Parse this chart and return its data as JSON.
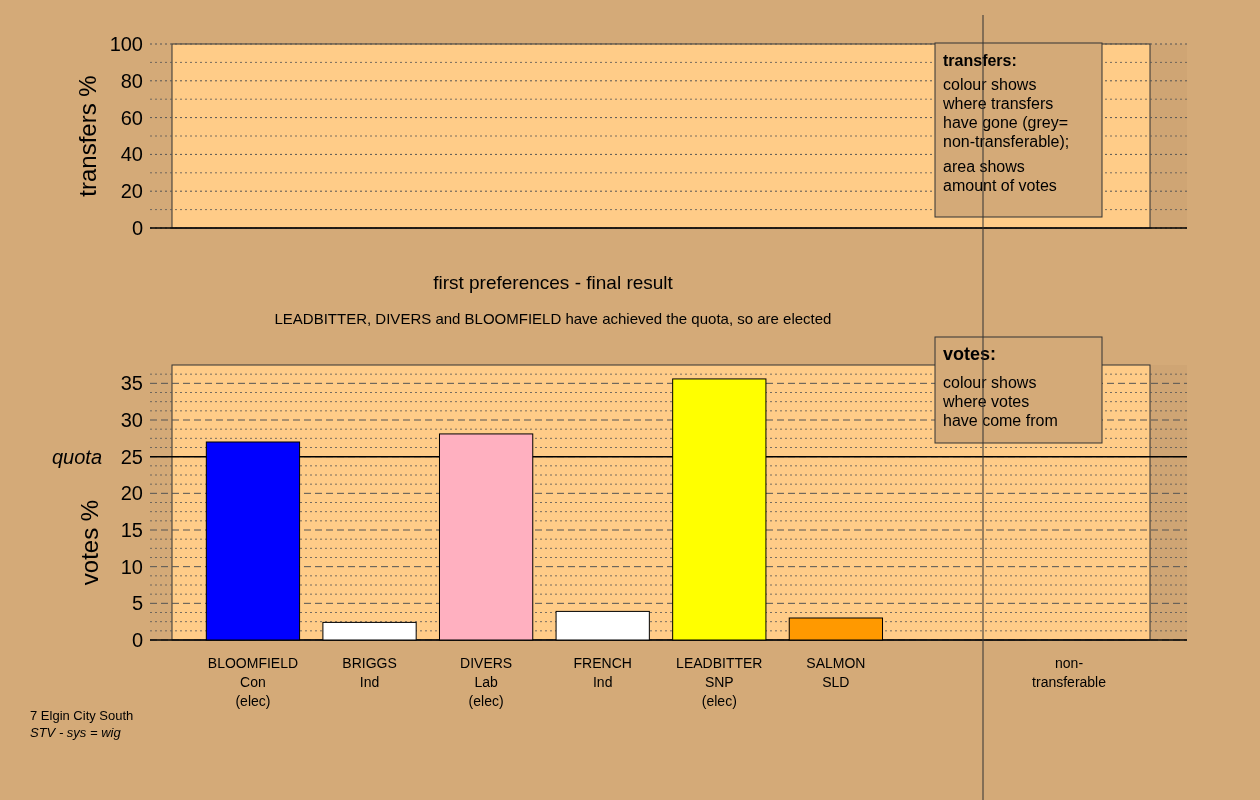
{
  "chart_data": [
    {
      "type": "bar",
      "ylabel": "transfers %",
      "values": [
        null,
        null,
        null,
        null,
        null,
        null,
        null,
        null
      ],
      "ylim": [
        0,
        100
      ],
      "yticks": [
        0,
        20,
        40,
        60,
        80,
        100
      ],
      "grid": true,
      "tick_labels": "y",
      "annotations": [
        "transfers:",
        "colour shows\nwhere transfers\nhave gone (grey=\nnon-transferable);",
        "area shows\namount of votes"
      ]
    },
    {
      "type": "bar",
      "title": "first preferences - final result",
      "subtitle": "LEADBITTER, DIVERS and BLOOMFIELD have achieved the quota, so are elected",
      "ylabel": "votes %",
      "categories": [
        "BLOOMFIELD\nCon\n(elec)",
        "BRIGGS\nInd",
        "DIVERS\nLab\n(elec)",
        "FRENCH\nInd",
        "LEADBITTER\nSNP\n(elec)",
        "SALMON\nSLD",
        null,
        "non-\ntransferable"
      ],
      "values": [
        27.0,
        2.4,
        28.1,
        3.9,
        35.6,
        3.0,
        null,
        null
      ],
      "colors": [
        "#0000ff",
        "#ffffff",
        "#ffb0c0",
        "#ffffff",
        "#ffff00",
        "#ff9900",
        null,
        null
      ],
      "ylim": [
        0,
        37.5
      ],
      "yticks": [
        0,
        5,
        10,
        15,
        20,
        25,
        30,
        35
      ],
      "grid": true,
      "ref_lines": [
        {
          "axis": "y",
          "value": 25,
          "label": "quota",
          "color": "#000000",
          "line_style": "solid"
        }
      ],
      "annotations": [
        "votes:",
        "colour shows\nwhere votes\nhave come from",
        "7 Elgin City South",
        "STV - sys = wig"
      ]
    }
  ]
}
